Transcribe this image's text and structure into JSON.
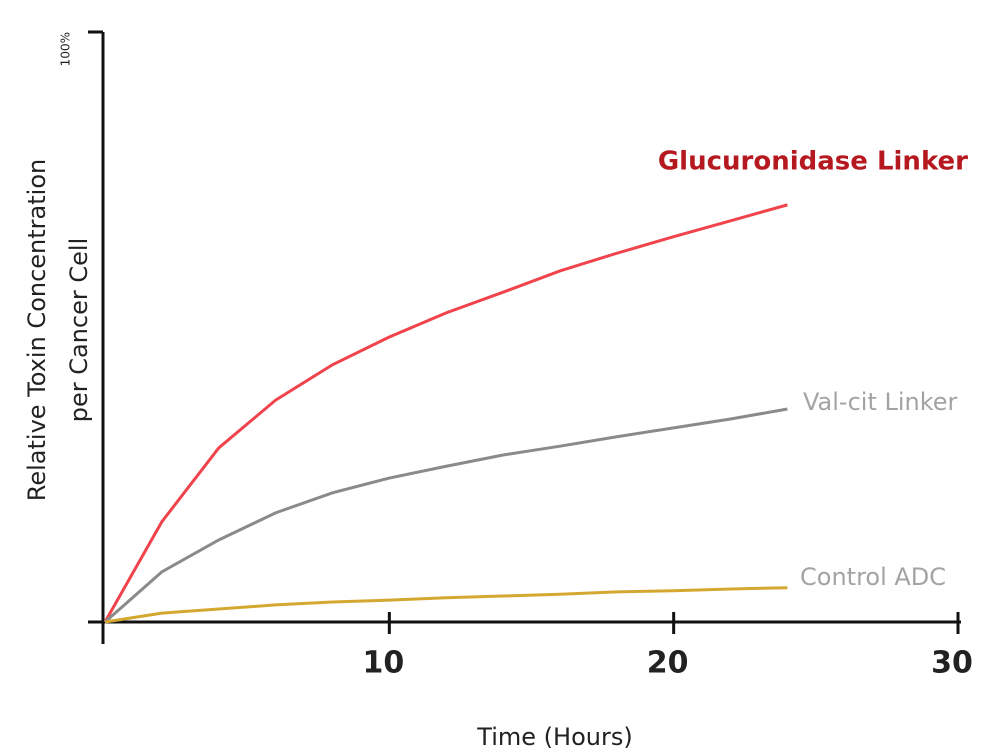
{
  "chart_data": {
    "type": "line",
    "xlabel": "Time (Hours)",
    "ylabel": [
      "Relative Toxin Concentration",
      "per Cancer Cell"
    ],
    "x": [
      0,
      2,
      4,
      6,
      8,
      10,
      12,
      14,
      16,
      18,
      20,
      22,
      24
    ],
    "series": [
      {
        "name": "Glucuronidase Linker",
        "color": "#f0434b",
        "values": [
          0,
          17,
          29.5,
          37.6,
          43.6,
          48.3,
          52.4,
          55.9,
          59.5,
          62.5,
          65.3,
          68,
          70.7
        ]
      },
      {
        "name": "Val-cit Linker",
        "color": "#8a8a8a",
        "values": [
          0,
          8.5,
          13.9,
          18.5,
          21.9,
          24.4,
          26.4,
          28.3,
          29.8,
          31.4,
          32.9,
          34.4,
          36.1
        ]
      },
      {
        "name": "Control ADC",
        "color": "#d4a830",
        "values": [
          0,
          1.5,
          2.2,
          2.9,
          3.4,
          3.7,
          4.1,
          4.4,
          4.7,
          5.1,
          5.3,
          5.6,
          5.8
        ]
      }
    ],
    "label_colors": [
      "#b5191f",
      "#a3a3a3",
      "#a3a3a3"
    ],
    "xlim": [
      0,
      30
    ],
    "xticks": [
      10,
      20,
      30
    ],
    "ylim": [
      0,
      100
    ],
    "yticks": [
      {
        "value": 100,
        "label": "100%"
      }
    ]
  }
}
